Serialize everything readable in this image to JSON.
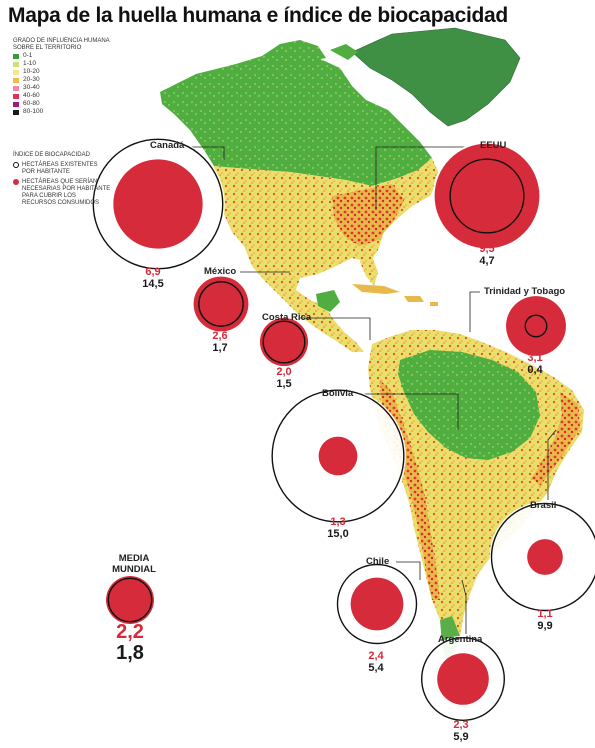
{
  "title": "Mapa de la huella humana e índice de biocapacidad",
  "legend_influence": {
    "heading": "GRADO DE INFLUENCIA HUMANA SOBRE EL TERRITORIO",
    "items": [
      {
        "label": "0-1",
        "color": "#3a9a3a"
      },
      {
        "label": "1-10",
        "color": "#cfe07a"
      },
      {
        "label": "10-20",
        "color": "#f5e88c"
      },
      {
        "label": "20-30",
        "color": "#f5b84a"
      },
      {
        "label": "30-40",
        "color": "#f08aa0"
      },
      {
        "label": "40-60",
        "color": "#e0305a"
      },
      {
        "label": "60-80",
        "color": "#a01a7a"
      },
      {
        "label": "80-100",
        "color": "#1a1a1a"
      }
    ]
  },
  "legend_bio": {
    "heading": "ÍNDICE DE BIOCAPACIDAD",
    "existing": "HECTÁREAS EXISTENTES POR HABITANTE",
    "required": "HECTÁREAS QUE SERÍAN NECESARIAS POR HABITANTE PARA CUBRIR LOS RECURSOS CONSUMIDOS"
  },
  "countries": [
    {
      "name": "Canadá",
      "required": "6,9",
      "existing": "14,5"
    },
    {
      "name": "EEUU",
      "required": "9,5",
      "existing": "4,7"
    },
    {
      "name": "México",
      "required": "2,6",
      "existing": "1,7"
    },
    {
      "name": "Costa Rica",
      "required": "2,0",
      "existing": "1,5"
    },
    {
      "name": "Trinidad y Tobago",
      "required": "3,1",
      "existing": "0,4"
    },
    {
      "name": "Bolivia",
      "required": "1,3",
      "existing": "15,0"
    },
    {
      "name": "Brasil",
      "required": "1,1",
      "existing": "9,9"
    },
    {
      "name": "Chile",
      "required": "2,4",
      "existing": "5,4"
    },
    {
      "name": "Argentina",
      "required": "2,3",
      "existing": "5,9"
    }
  ],
  "world": {
    "name": "MEDIA MUNDIAL",
    "required": "2,2",
    "existing": "1,8"
  },
  "colors": {
    "required_fill": "#d62b3a",
    "existing_stroke": "#111111",
    "land_green": "#4caf3e",
    "land_yellow": "#e8df6a",
    "land_red": "#e35a2a",
    "greenland": "#3f8f45"
  }
}
